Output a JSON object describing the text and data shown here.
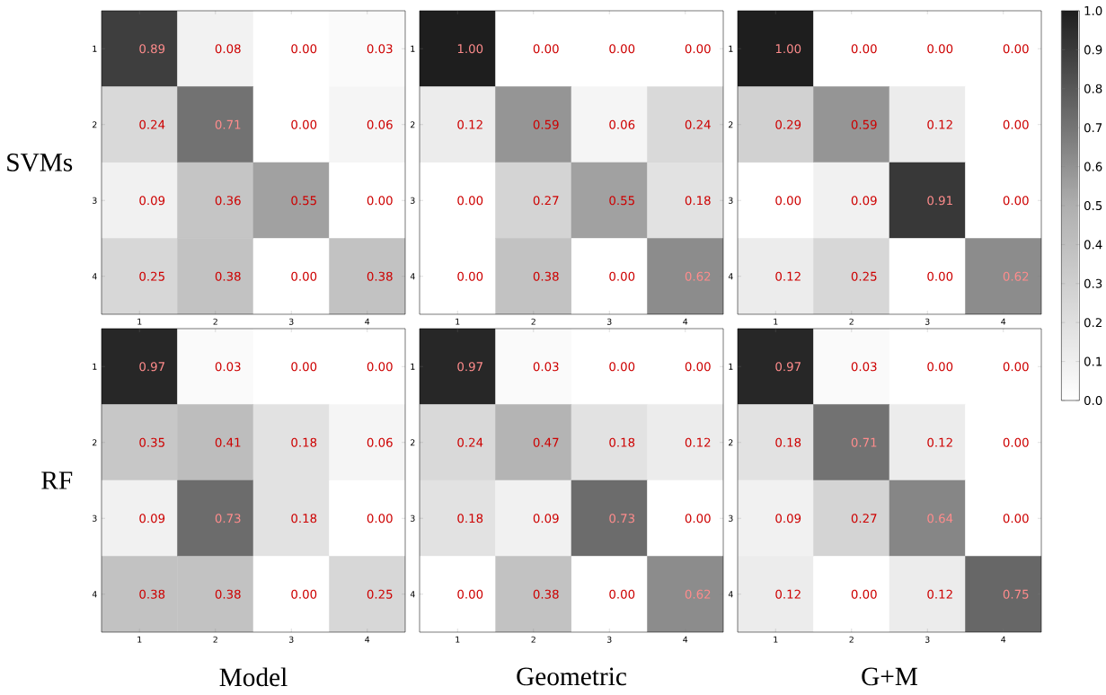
{
  "chart_data": [
    {
      "type": "heatmap",
      "ylabel": "SVMs",
      "categories": [
        "1",
        "2",
        "3",
        "4"
      ],
      "y_categories": [
        "1",
        "2",
        "3",
        "4"
      ],
      "cells": [
        [
          0.89,
          0.08,
          0,
          0.03
        ],
        [
          0.24,
          0.71,
          0,
          0.06
        ],
        [
          0.09,
          0.36,
          0.55,
          0
        ],
        [
          0.25,
          0.38,
          0,
          0.38
        ]
      ],
      "cell_labels": [
        [
          "0.89",
          "0.08",
          "0.00",
          "0.03"
        ],
        [
          "0.24",
          "0.71",
          "0.00",
          "0.06"
        ],
        [
          "0.09",
          "0.36",
          "0.55",
          "0.00"
        ],
        [
          "0.25",
          "0.38",
          "0.00",
          "0.38"
        ]
      ]
    },
    {
      "type": "heatmap",
      "categories": [
        "1",
        "2",
        "3",
        "4"
      ],
      "y_categories": [
        "1",
        "2",
        "3",
        "4"
      ],
      "cells": [
        [
          1,
          0,
          0,
          0
        ],
        [
          0.12,
          0.59,
          0.06,
          0.24
        ],
        [
          0,
          0.27,
          0.55,
          0.18
        ],
        [
          0,
          0.38,
          0,
          0.62
        ]
      ],
      "cell_labels": [
        [
          "1.00",
          "0.00",
          "0.00",
          "0.00"
        ],
        [
          "0.12",
          "0.59",
          "0.06",
          "0.24"
        ],
        [
          "0.00",
          "0.27",
          "0.55",
          "0.18"
        ],
        [
          "0.00",
          "0.38",
          "0.00",
          "0.62"
        ]
      ]
    },
    {
      "type": "heatmap",
      "categories": [
        "1",
        "2",
        "3",
        "4"
      ],
      "y_categories": [
        "1",
        "2",
        "3",
        "4"
      ],
      "cells": [
        [
          1,
          0,
          0,
          0
        ],
        [
          0.29,
          0.59,
          0.12,
          0
        ],
        [
          0,
          0.09,
          0.91,
          0
        ],
        [
          0.12,
          0.25,
          0,
          0.62
        ]
      ],
      "cell_labels": [
        [
          "1.00",
          "0.00",
          "0.00",
          "0.00"
        ],
        [
          "0.29",
          "0.59",
          "0.12",
          "0.00"
        ],
        [
          "0.00",
          "0.09",
          "0.91",
          "0.00"
        ],
        [
          "0.12",
          "0.25",
          "0.00",
          "0.62"
        ]
      ],
      "clim": [
        0,
        1
      ],
      "cticks": [
        {
          "value": 0,
          "label": "0.0"
        },
        {
          "value": 0.1,
          "label": "0.1"
        },
        {
          "value": 0.2,
          "label": "0.2"
        },
        {
          "value": 0.3,
          "label": "0.3"
        },
        {
          "value": 0.4,
          "label": "0.4"
        },
        {
          "value": 0.5,
          "label": "0.5"
        },
        {
          "value": 0.6,
          "label": "0.6"
        },
        {
          "value": 0.7,
          "label": "0.7"
        },
        {
          "value": 0.8,
          "label": "0.8"
        },
        {
          "value": 0.9,
          "label": "0.9"
        },
        {
          "value": 1,
          "label": "1.0"
        }
      ]
    },
    {
      "type": "heatmap",
      "ylabel": "RF",
      "xlabel": "Model",
      "categories": [
        "1",
        "2",
        "3",
        "4"
      ],
      "y_categories": [
        "1",
        "2",
        "3",
        "4"
      ],
      "cells": [
        [
          0.97,
          0.03,
          0,
          0
        ],
        [
          0.35,
          0.41,
          0.18,
          0.06
        ],
        [
          0.09,
          0.73,
          0.18,
          0
        ],
        [
          0.38,
          0.38,
          0,
          0.25
        ]
      ],
      "cell_labels": [
        [
          "0.97",
          "0.03",
          "0.00",
          "0.00"
        ],
        [
          "0.35",
          "0.41",
          "0.18",
          "0.06"
        ],
        [
          "0.09",
          "0.73",
          "0.18",
          "0.00"
        ],
        [
          "0.38",
          "0.38",
          "0.00",
          "0.25"
        ]
      ]
    },
    {
      "type": "heatmap",
      "xlabel": "Geometric",
      "categories": [
        "1",
        "2",
        "3",
        "4"
      ],
      "y_categories": [
        "1",
        "2",
        "3",
        "4"
      ],
      "cells": [
        [
          0.97,
          0.03,
          0,
          0
        ],
        [
          0.24,
          0.47,
          0.18,
          0.12
        ],
        [
          0.18,
          0.09,
          0.73,
          0
        ],
        [
          0,
          0.38,
          0,
          0.62
        ]
      ],
      "cell_labels": [
        [
          "0.97",
          "0.03",
          "0.00",
          "0.00"
        ],
        [
          "0.24",
          "0.47",
          "0.18",
          "0.12"
        ],
        [
          "0.18",
          "0.09",
          "0.73",
          "0.00"
        ],
        [
          "0.00",
          "0.38",
          "0.00",
          "0.62"
        ]
      ]
    },
    {
      "type": "heatmap",
      "xlabel": "G+M",
      "categories": [
        "1",
        "2",
        "3",
        "4"
      ],
      "y_categories": [
        "1",
        "2",
        "3",
        "4"
      ],
      "cells": [
        [
          0.97,
          0.03,
          0,
          0
        ],
        [
          0.18,
          0.71,
          0.12,
          0
        ],
        [
          0.09,
          0.27,
          0.64,
          0
        ],
        [
          0.12,
          0,
          0.12,
          0.75
        ]
      ],
      "cell_labels": [
        [
          "0.97",
          "0.03",
          "0.00",
          "0.00"
        ],
        [
          "0.18",
          "0.71",
          "0.12",
          "0.00"
        ],
        [
          "0.09",
          "0.27",
          "0.64",
          "0.00"
        ],
        [
          "0.12",
          "0.00",
          "0.12",
          "0.75"
        ]
      ]
    }
  ]
}
